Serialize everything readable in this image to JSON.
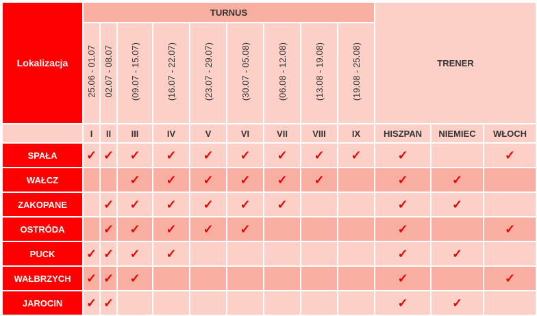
{
  "header": {
    "localization_label": "Lokalizacja",
    "turnus_label": "TURNUS",
    "trener_label": "TRENER"
  },
  "turnus_dates": [
    "25.06 - 01.07",
    "02.07 - 08.07",
    "(09.07 - 15.07)",
    "(16.07 - 22.07)",
    "(23.07 - 29.07)",
    "(30.07 - 05.08)",
    "(06.08 - 12.08)",
    "(13.08 - 19.08)",
    "(19.08 - 25.08)"
  ],
  "turnus_numbers": [
    "I",
    "II",
    "III",
    "IV",
    "V",
    "VI",
    "VII",
    "VIII",
    "IX"
  ],
  "trainers": [
    "HISZPAN",
    "NIEMIEC",
    "WŁOCH"
  ],
  "check_symbol": "✓",
  "rows": [
    {
      "name": "SPAŁA",
      "marks": [
        1,
        1,
        1,
        1,
        1,
        1,
        1,
        1,
        1,
        1,
        0,
        1
      ]
    },
    {
      "name": "WAŁCZ",
      "marks": [
        0,
        0,
        1,
        1,
        1,
        1,
        1,
        1,
        0,
        1,
        1,
        0
      ]
    },
    {
      "name": "ZAKOPANE",
      "marks": [
        0,
        1,
        1,
        1,
        1,
        1,
        1,
        0,
        0,
        1,
        1,
        0
      ]
    },
    {
      "name": "OSTRÓDA",
      "marks": [
        0,
        1,
        1,
        1,
        1,
        1,
        0,
        0,
        0,
        1,
        0,
        1
      ]
    },
    {
      "name": "PUCK",
      "marks": [
        1,
        1,
        1,
        1,
        0,
        0,
        0,
        0,
        0,
        1,
        1,
        0
      ]
    },
    {
      "name": "WAŁBRZYCH",
      "marks": [
        1,
        1,
        1,
        0,
        0,
        0,
        0,
        0,
        0,
        1,
        0,
        1
      ]
    },
    {
      "name": "JAROCIN",
      "marks": [
        1,
        1,
        0,
        0,
        0,
        0,
        0,
        0,
        0,
        1,
        1,
        0
      ]
    }
  ]
}
